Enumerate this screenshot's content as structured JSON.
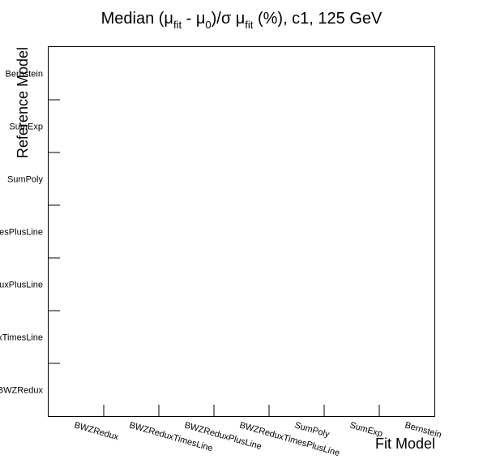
{
  "chart_data": {
    "type": "heatmap",
    "title": {
      "prefix": "Median (",
      "mu": "μ",
      "sub_fit": "fit",
      "minus": " - ",
      "sub_zero": "0",
      "after_zero": ")/σ ",
      "mu2": "μ",
      "sub_fit2": "fit",
      "suffix": " (%), c1, 125 GeV"
    },
    "xlabel": "Fit Model",
    "ylabel": "Reference Model",
    "x_categories": [
      "BWZRedux",
      "BWZReduxTimesLine",
      "BWZReduxPlusLine",
      "BWZReduxTimesPlusLine",
      "SumPoly",
      "SumExp",
      "Bernstein"
    ],
    "y_categories": [
      "BWZRedux",
      "BWZReduxTimesLine",
      "BWZReduxPlusLine",
      "BWZReduxTimesPlusLine",
      "SumPoly",
      "SumExp",
      "Bernstein"
    ],
    "values": [],
    "grid": false,
    "legend": "none"
  }
}
